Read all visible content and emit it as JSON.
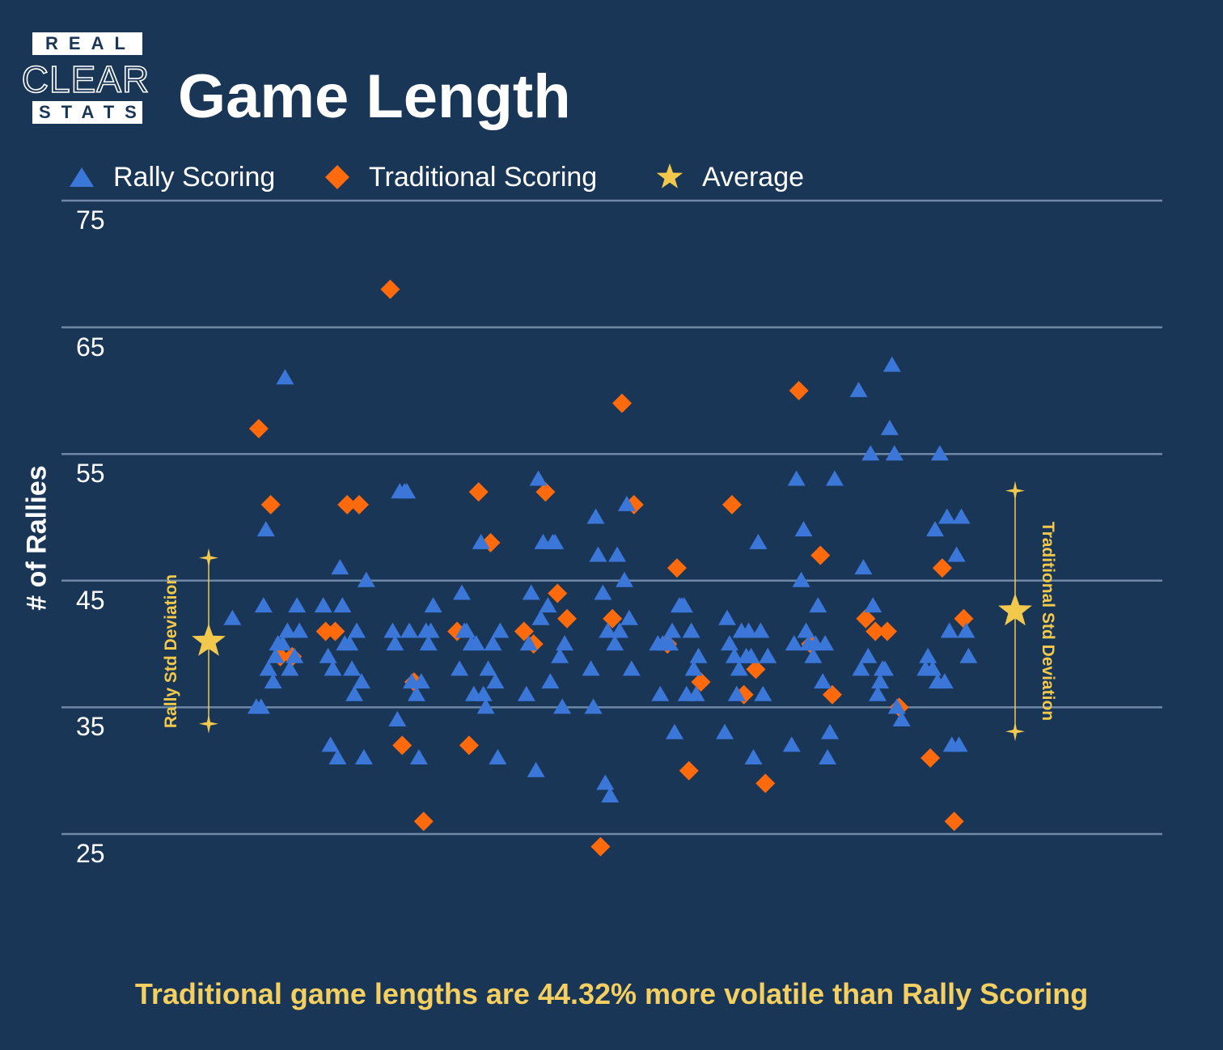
{
  "brand": {
    "top": "REAL",
    "middle": "CLEAR",
    "bottom": "STATS"
  },
  "title": "Game Length",
  "legend": [
    {
      "label": "Rally Scoring",
      "marker": "triangle",
      "color": "#3b76d9"
    },
    {
      "label": "Traditional Scoring",
      "marker": "diamond",
      "color": "#ff6a0d"
    },
    {
      "label": "Average",
      "marker": "star",
      "color": "#f2c94c"
    }
  ],
  "footer": "Traditional game lengths are 44.32% more volatile than Rally Scoring",
  "chart_data": {
    "type": "scatter",
    "title": "Game Length",
    "xlabel": "",
    "ylabel": "# of Rallies",
    "ylim": [
      25,
      75
    ],
    "yticks": [
      25,
      35,
      45,
      55,
      65,
      75
    ],
    "grid": true,
    "legend_position": "top-left",
    "series": [
      {
        "name": "Rally Scoring",
        "marker": "triangle",
        "color": "#3b76d9",
        "y": [
          42,
          35,
          35,
          43,
          49,
          38,
          37,
          39,
          40,
          40,
          61,
          41,
          38,
          39,
          43,
          41,
          43,
          39,
          32,
          38,
          31,
          46,
          43,
          40,
          40,
          38,
          36,
          41,
          37,
          31,
          45,
          41,
          40,
          34,
          52,
          52,
          52,
          41,
          37,
          36,
          31,
          37,
          41,
          40,
          41,
          43,
          38,
          44,
          41,
          41,
          40,
          36,
          40,
          48,
          36,
          35,
          38,
          40,
          37,
          31,
          41,
          36,
          40,
          44,
          30,
          53,
          42,
          48,
          43,
          37,
          48,
          48,
          39,
          35,
          40,
          38,
          35,
          50,
          47,
          44,
          29,
          41,
          28,
          40,
          47,
          41,
          45,
          51,
          42,
          38,
          40,
          36,
          40,
          40,
          40,
          41,
          33,
          43,
          43,
          43,
          36,
          41,
          38,
          36,
          39,
          33,
          42,
          40,
          39,
          36,
          38,
          41,
          39,
          41,
          39,
          31,
          48,
          41,
          36,
          39,
          32,
          40,
          53,
          45,
          49,
          41,
          40,
          39,
          40,
          43,
          37,
          40,
          31,
          33,
          53,
          60,
          38,
          46,
          39,
          55,
          43,
          36,
          37,
          38,
          38,
          57,
          62,
          55,
          35,
          34,
          38,
          39,
          38,
          49,
          37,
          55,
          37,
          50,
          41,
          32,
          47,
          32,
          50,
          41,
          39
        ]
      },
      {
        "name": "Traditional Scoring",
        "marker": "diamond",
        "color": "#ff6a0d",
        "y": [
          57,
          51,
          39,
          39,
          41,
          41,
          51,
          51,
          68,
          32,
          37,
          26,
          41,
          32,
          52,
          48,
          41,
          40,
          52,
          44,
          42,
          24,
          42,
          59,
          51,
          40,
          46,
          30,
          37,
          51,
          36,
          38,
          29,
          60,
          40,
          47,
          36,
          42,
          41,
          41,
          35,
          31,
          46,
          26,
          42
        ]
      },
      {
        "name": "Average",
        "marker": "star",
        "color": "#f2c94c",
        "points": [
          {
            "series": "Rally Scoring",
            "mean": 40.2,
            "low": 33.7,
            "high": 46.8
          },
          {
            "series": "Traditional Scoring",
            "mean": 42.6,
            "low": 33.1,
            "high": 52.1
          }
        ]
      }
    ],
    "annotations": [
      "Rally Std Deviation",
      "Traditional Std Deviation"
    ]
  }
}
